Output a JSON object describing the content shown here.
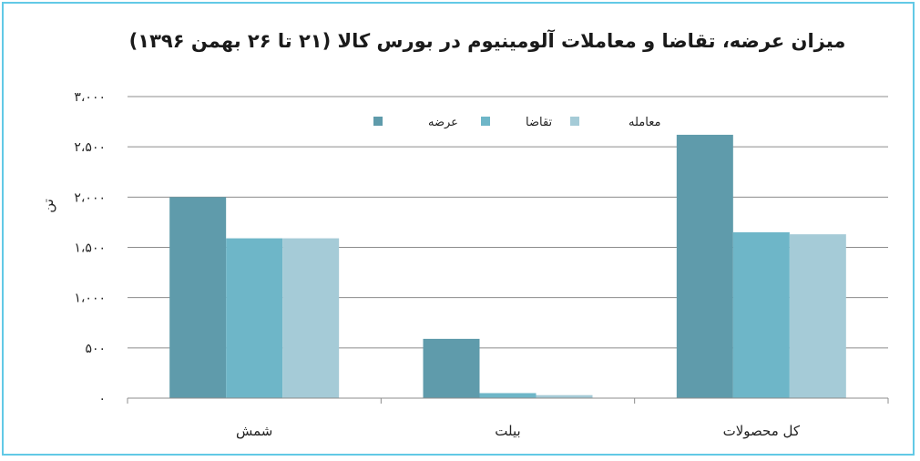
{
  "chart_data": {
    "type": "bar",
    "title": "میزان عرضه، تقاضا و معاملات آلومینیوم در بورس کالا (۲۱ تا ۲۶ بهمن ۱۳۹۶)",
    "ylabel": "تن",
    "xlabel": "",
    "ylim": [
      0,
      3000
    ],
    "yticks": [
      0,
      500,
      1000,
      1500,
      2000,
      2500,
      3000
    ],
    "ytick_labels": [
      "۰",
      "۵۰۰",
      "۱،۰۰۰",
      "۱،۵۰۰",
      "۲،۰۰۰",
      "۲،۵۰۰",
      "۳،۰۰۰"
    ],
    "categories": [
      "شمش",
      "بیلت",
      "کل محصولات"
    ],
    "series": [
      {
        "name": "عرضه",
        "color": "#5f9bab",
        "values": [
          2000,
          590,
          2620
        ]
      },
      {
        "name": "تقاضا",
        "color": "#6eb6c8",
        "values": [
          1590,
          50,
          1650
        ]
      },
      {
        "name": "معامله",
        "color": "#a5cbd7",
        "values": [
          1590,
          30,
          1630
        ]
      }
    ],
    "grid": true,
    "legend_position": "top-center"
  }
}
